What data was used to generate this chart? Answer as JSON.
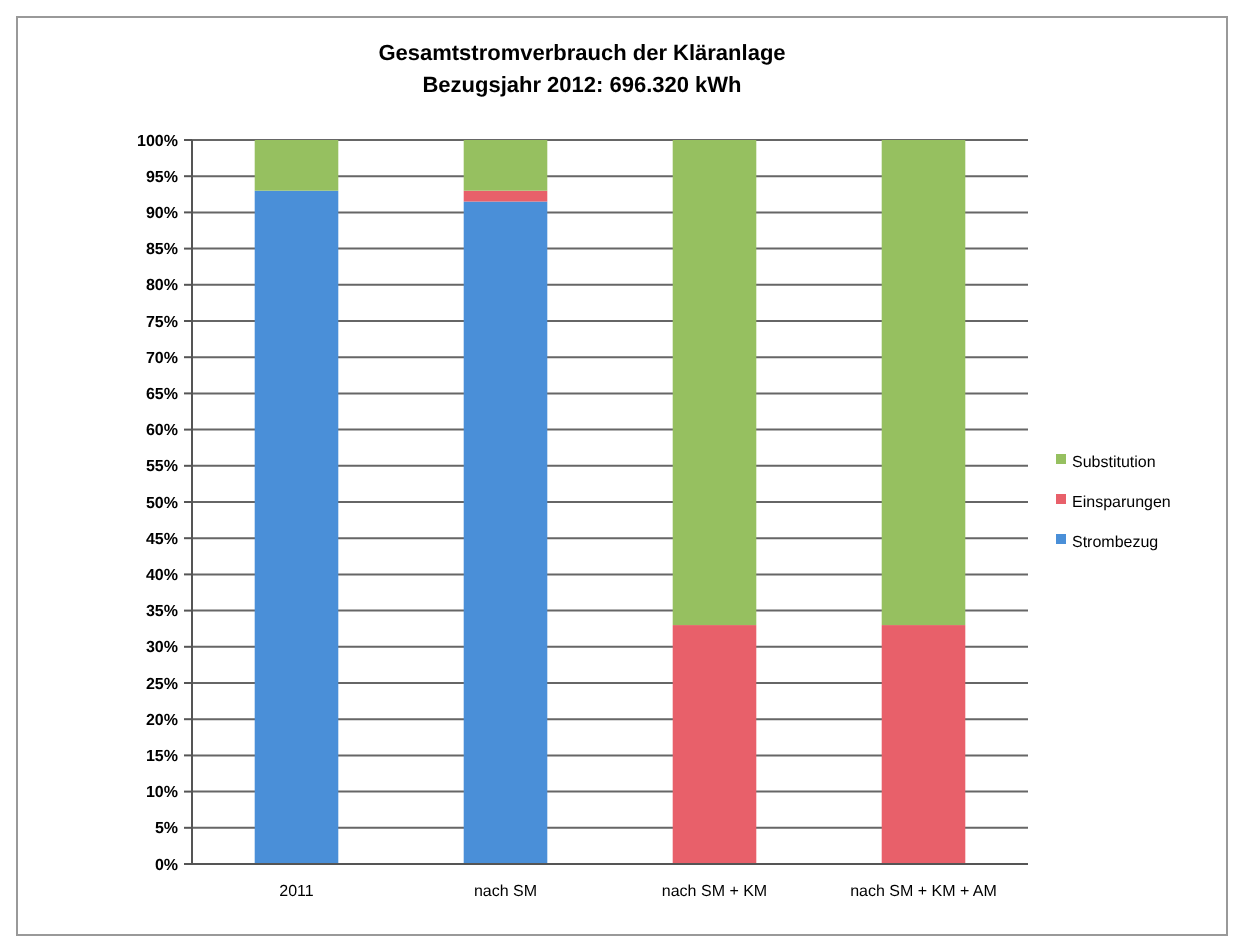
{
  "chart_data": {
    "type": "bar",
    "title": "Gesamtstromverbrauch der Kläranlage",
    "subtitle": "Bezugsjahr 2012: 696.320 kWh",
    "stacked": true,
    "categories": [
      "2011",
      "nach SM",
      "nach SM + KM",
      "nach SM + KM + AM"
    ],
    "series": [
      {
        "name": "Strombezug",
        "color": "#4a8fd8",
        "values": [
          93,
          91.5,
          0,
          0
        ]
      },
      {
        "name": "Einsparungen",
        "color": "#e8606a",
        "values": [
          0,
          1.5,
          33,
          33
        ]
      },
      {
        "name": "Substitution",
        "color": "#96c060",
        "values": [
          7,
          7,
          67,
          67
        ]
      }
    ],
    "ylim": [
      0,
      100
    ],
    "yticks": [
      {
        "value": 0,
        "label": "0%"
      },
      {
        "value": 5,
        "label": "5%"
      },
      {
        "value": 10,
        "label": "10%"
      },
      {
        "value": 15,
        "label": "15%"
      },
      {
        "value": 20,
        "label": "20%"
      },
      {
        "value": 25,
        "label": "25%"
      },
      {
        "value": 30,
        "label": "30%"
      },
      {
        "value": 35,
        "label": "35%"
      },
      {
        "value": 40,
        "label": "40%"
      },
      {
        "value": 45,
        "label": "45%"
      },
      {
        "value": 50,
        "label": "50%"
      },
      {
        "value": 55,
        "label": "55%"
      },
      {
        "value": 60,
        "label": "60%"
      },
      {
        "value": 65,
        "label": "65%"
      },
      {
        "value": 70,
        "label": "70%"
      },
      {
        "value": 75,
        "label": "75%"
      },
      {
        "value": 80,
        "label": "80%"
      },
      {
        "value": 85,
        "label": "85%"
      },
      {
        "value": 90,
        "label": "90%"
      },
      {
        "value": 95,
        "label": "95%"
      },
      {
        "value": 100,
        "label": "100%"
      }
    ],
    "grid": "y",
    "legend": "right"
  }
}
